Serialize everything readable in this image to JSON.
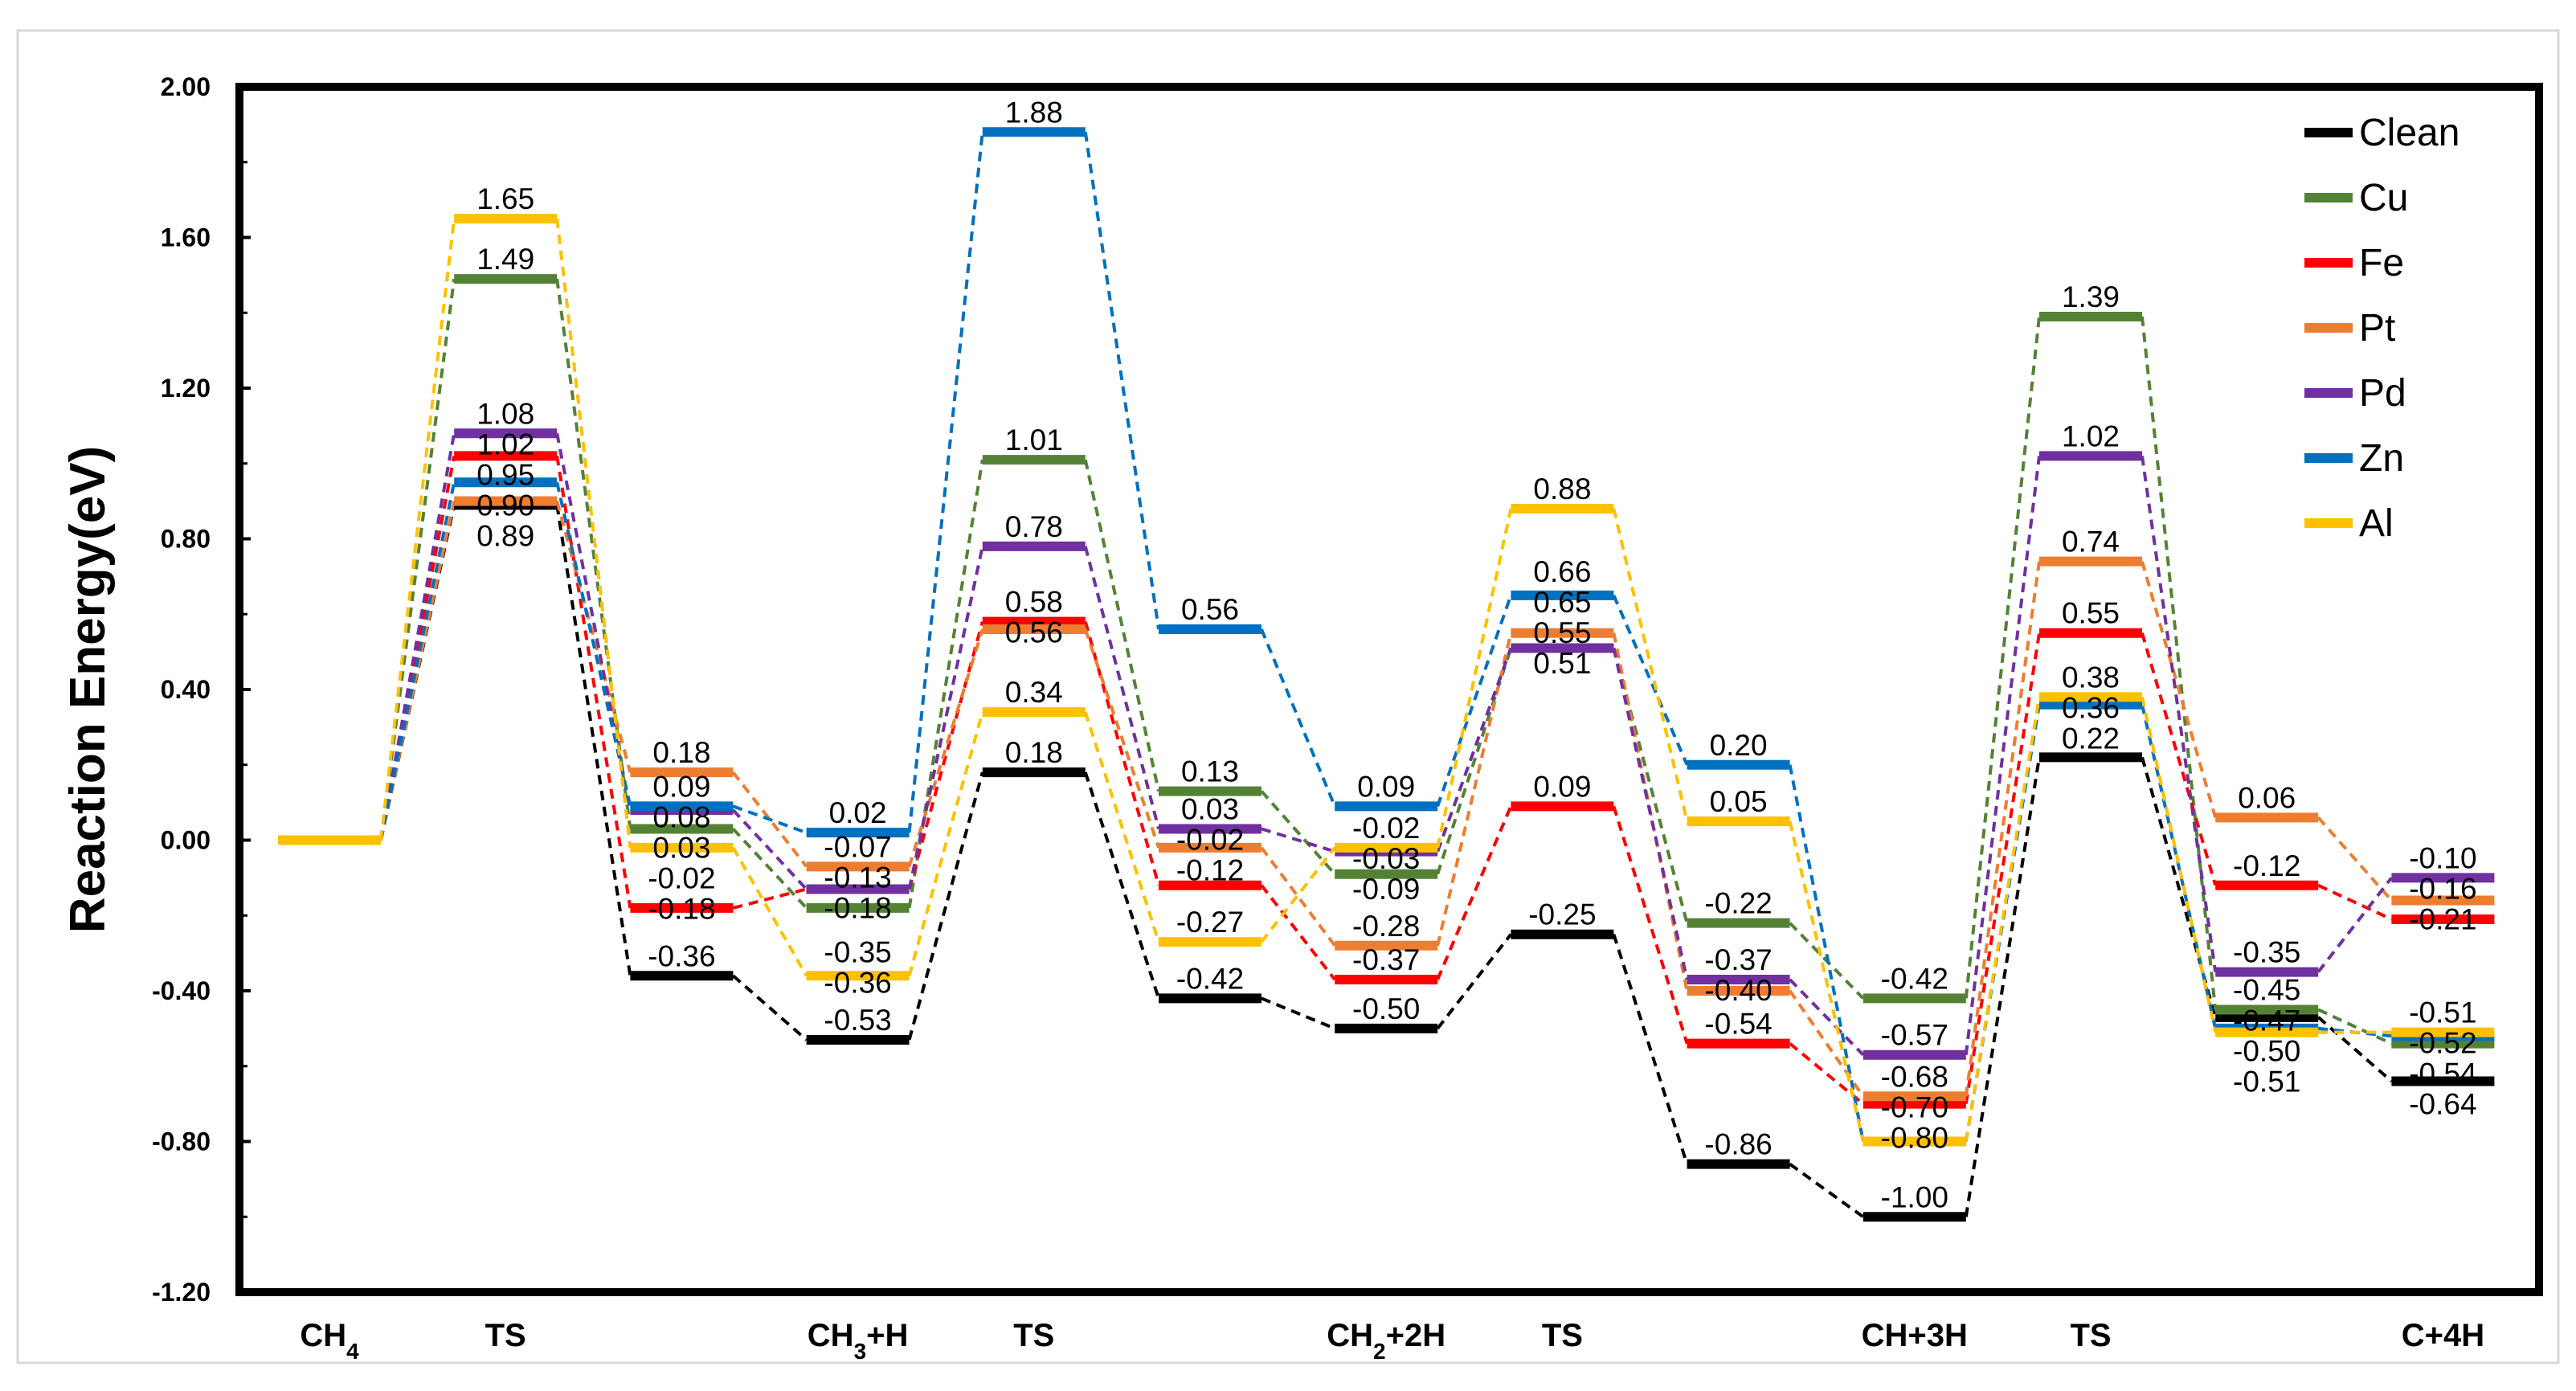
{
  "chart_data": {
    "type": "energy-profile",
    "ylabel": "Reaction Energy(eV)",
    "ylim": [
      -1.2,
      2.0
    ],
    "yticks": [
      "2.00",
      "1.60",
      "1.20",
      "0.80",
      "0.40",
      "0.00",
      "-0.40",
      "-0.80",
      "-1.20"
    ],
    "categories": [
      {
        "main": "CH",
        "sub": "4",
        "rest": ""
      },
      {
        "main": "TS",
        "sub": "",
        "rest": ""
      },
      {
        "main": "",
        "sub": "",
        "rest": ""
      },
      {
        "main": "CH",
        "sub": "3",
        "rest": "+H"
      },
      {
        "main": "TS",
        "sub": "",
        "rest": ""
      },
      {
        "main": "",
        "sub": "",
        "rest": ""
      },
      {
        "main": "CH",
        "sub": "2",
        "rest": "+2H"
      },
      {
        "main": "TS",
        "sub": "",
        "rest": ""
      },
      {
        "main": "",
        "sub": "",
        "rest": ""
      },
      {
        "main": "CH+3H",
        "sub": "",
        "rest": ""
      },
      {
        "main": "TS",
        "sub": "",
        "rest": ""
      },
      {
        "main": "",
        "sub": "",
        "rest": ""
      },
      {
        "main": "C+4H",
        "sub": "",
        "rest": ""
      }
    ],
    "series": [
      {
        "name": "Clean",
        "color": "#000000",
        "values": [
          0,
          0.89,
          -0.36,
          -0.53,
          0.18,
          -0.42,
          -0.5,
          -0.25,
          -0.86,
          -1.0,
          0.22,
          -0.47,
          -0.64
        ]
      },
      {
        "name": "Cu",
        "color": "#548235",
        "values": [
          0,
          1.49,
          0.03,
          -0.18,
          1.01,
          0.13,
          -0.09,
          0.51,
          -0.22,
          -0.42,
          1.39,
          -0.45,
          -0.54
        ]
      },
      {
        "name": "Fe",
        "color": "#FF0000",
        "values": [
          0,
          1.02,
          -0.18,
          -0.13,
          0.58,
          -0.12,
          -0.37,
          0.09,
          -0.54,
          -0.7,
          0.55,
          -0.12,
          -0.21
        ]
      },
      {
        "name": "Pt",
        "color": "#ED7D31",
        "values": [
          0,
          0.9,
          0.18,
          -0.07,
          0.56,
          -0.02,
          -0.28,
          0.55,
          -0.4,
          -0.68,
          0.74,
          0.06,
          -0.16
        ]
      },
      {
        "name": "Pd",
        "color": "#7030A0",
        "values": [
          0,
          1.08,
          0.08,
          -0.13,
          0.78,
          0.03,
          -0.03,
          0.51,
          -0.37,
          -0.57,
          1.02,
          -0.35,
          -0.1
        ]
      },
      {
        "name": "Zn",
        "color": "#0070C0",
        "values": [
          0,
          0.95,
          0.09,
          0.02,
          1.88,
          0.56,
          0.09,
          0.65,
          0.2,
          -0.8,
          0.36,
          -0.5,
          -0.52
        ]
      },
      {
        "name": "Al",
        "color": "#FFC000",
        "values": [
          0,
          1.65,
          -0.02,
          -0.36,
          0.34,
          -0.27,
          -0.02,
          0.88,
          0.05,
          -0.8,
          0.38,
          -0.51,
          -0.51
        ]
      }
    ],
    "annotations": [
      {
        "text": "1.65",
        "col": 1,
        "y": 1.65
      },
      {
        "text": "1.49",
        "col": 1,
        "y": 1.49
      },
      {
        "text": "1.08",
        "col": 1,
        "y": 1.08
      },
      {
        "text": "0.95",
        "col": 1,
        "y": 0.95
      },
      {
        "text": "1.02",
        "col": 1,
        "y": 1.02
      },
      {
        "text": "0.90",
        "col": 1,
        "y": 0.9
      },
      {
        "text": "0.89",
        "col": 1,
        "y": 0.89
      },
      {
        "text": "0.18",
        "col": 2,
        "y": 0.18
      },
      {
        "text": "0.09",
        "col": 2,
        "y": 0.09
      },
      {
        "text": "0.08",
        "col": 2,
        "y": 0.08
      },
      {
        "text": "0.03",
        "col": 2,
        "y": 0.03
      },
      {
        "text": "-0.02",
        "col": 2,
        "y": -0.02
      },
      {
        "text": "-0.18",
        "col": 2,
        "y": -0.18
      },
      {
        "text": "-0.36",
        "col": 2,
        "y": -0.36
      },
      {
        "text": "0.02",
        "col": 3,
        "y": 0.02
      },
      {
        "text": "-0.07",
        "col": 3,
        "y": -0.07
      },
      {
        "text": "-0.13",
        "col": 3,
        "y": -0.13
      },
      {
        "text": "-0.18",
        "col": 3,
        "y": -0.18
      },
      {
        "text": "-0.36",
        "col": 3,
        "y": -0.36
      },
      {
        "text": "-0.35",
        "col": 3,
        "y": -0.35
      },
      {
        "text": "-0.53",
        "col": 3,
        "y": -0.53
      },
      {
        "text": "1.88",
        "col": 4,
        "y": 1.88
      },
      {
        "text": "1.01",
        "col": 4,
        "y": 1.01
      },
      {
        "text": "0.78",
        "col": 4,
        "y": 0.78
      },
      {
        "text": "0.58",
        "col": 4,
        "y": 0.58
      },
      {
        "text": "0.56",
        "col": 4,
        "y": 0.56
      },
      {
        "text": "0.34",
        "col": 4,
        "y": 0.34
      },
      {
        "text": "0.18",
        "col": 4,
        "y": 0.18
      },
      {
        "text": "0.56",
        "col": 5,
        "y": 0.56
      },
      {
        "text": "0.13",
        "col": 5,
        "y": 0.13
      },
      {
        "text": "0.03",
        "col": 5,
        "y": 0.03
      },
      {
        "text": "-0.02",
        "col": 5,
        "y": -0.02
      },
      {
        "text": "-0.12",
        "col": 5,
        "y": -0.12
      },
      {
        "text": "-0.27",
        "col": 5,
        "y": -0.27
      },
      {
        "text": "-0.42",
        "col": 5,
        "y": -0.42
      },
      {
        "text": "0.09",
        "col": 6,
        "y": 0.09
      },
      {
        "text": "-0.02",
        "col": 6,
        "y": -0.02
      },
      {
        "text": "-0.03",
        "col": 6,
        "y": -0.03
      },
      {
        "text": "-0.09",
        "col": 6,
        "y": -0.09
      },
      {
        "text": "-0.28",
        "col": 6,
        "y": -0.28
      },
      {
        "text": "-0.37",
        "col": 6,
        "y": -0.37
      },
      {
        "text": "-0.50",
        "col": 6,
        "y": -0.5
      },
      {
        "text": "0.88",
        "col": 7,
        "y": 0.88
      },
      {
        "text": "0.66",
        "col": 7,
        "y": 0.66
      },
      {
        "text": "0.65",
        "col": 7,
        "y": 0.65
      },
      {
        "text": "0.55",
        "col": 7,
        "y": 0.55
      },
      {
        "text": "0.51",
        "col": 7,
        "y": 0.51
      },
      {
        "text": "0.09",
        "col": 7,
        "y": 0.09
      },
      {
        "text": "-0.25",
        "col": 7,
        "y": -0.25
      },
      {
        "text": "0.20",
        "col": 8,
        "y": 0.2
      },
      {
        "text": "0.05",
        "col": 8,
        "y": 0.05
      },
      {
        "text": "-0.22",
        "col": 8,
        "y": -0.22
      },
      {
        "text": "-0.37",
        "col": 8,
        "y": -0.37
      },
      {
        "text": "-0.40",
        "col": 8,
        "y": -0.4
      },
      {
        "text": "-0.54",
        "col": 8,
        "y": -0.54
      },
      {
        "text": "-0.86",
        "col": 8,
        "y": -0.86
      },
      {
        "text": "-0.42",
        "col": 9,
        "y": -0.42
      },
      {
        "text": "-0.57",
        "col": 9,
        "y": -0.57
      },
      {
        "text": "-0.68",
        "col": 9,
        "y": -0.68
      },
      {
        "text": "-0.70",
        "col": 9,
        "y": -0.7
      },
      {
        "text": "-0.80",
        "col": 9,
        "y": -0.8
      },
      {
        "text": "-1.00",
        "col": 9,
        "y": -1.0
      },
      {
        "text": "1.39",
        "col": 10,
        "y": 1.39
      },
      {
        "text": "1.02",
        "col": 10,
        "y": 1.02
      },
      {
        "text": "0.74",
        "col": 10,
        "y": 0.74
      },
      {
        "text": "0.55",
        "col": 10,
        "y": 0.55
      },
      {
        "text": "0.36",
        "col": 10,
        "y": 0.36
      },
      {
        "text": "0.38",
        "col": 10,
        "y": 0.38
      },
      {
        "text": "0.22",
        "col": 10,
        "y": 0.22
      },
      {
        "text": "0.06",
        "col": 11,
        "y": 0.06
      },
      {
        "text": "-0.12",
        "col": 11,
        "y": -0.12
      },
      {
        "text": "-0.35",
        "col": 11,
        "y": -0.35
      },
      {
        "text": "-0.45",
        "col": 11,
        "y": -0.45
      },
      {
        "text": "-0.47",
        "col": 11,
        "y": -0.47
      },
      {
        "text": "-0.50",
        "col": 11,
        "y": -0.5
      },
      {
        "text": "-0.51",
        "col": 11,
        "y": -0.51
      },
      {
        "text": "-0.10",
        "col": 12,
        "y": -0.1
      },
      {
        "text": "-0.16",
        "col": 12,
        "y": -0.16
      },
      {
        "text": "-0.51",
        "col": 12,
        "y": -0.51
      },
      {
        "text": "-0.21",
        "col": 12,
        "y": -0.21
      },
      {
        "text": "-0.52",
        "col": 12,
        "y": -0.52
      },
      {
        "text": "-0.54",
        "col": 12,
        "y": -0.54
      },
      {
        "text": "-0.64",
        "col": 12,
        "y": -0.64
      }
    ],
    "legend": [
      "Clean",
      "Cu",
      "Fe",
      "Pt",
      "Pd",
      "Zn",
      "Al"
    ]
  }
}
